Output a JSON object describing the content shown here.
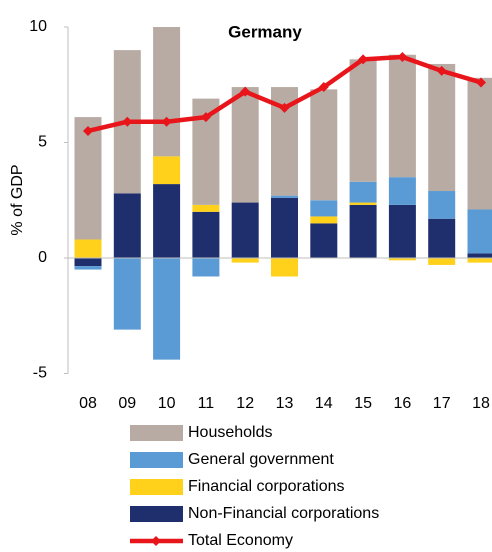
{
  "chart_data": {
    "type": "bar",
    "stacked": true,
    "title": "Germany",
    "y_label": "% of GDP",
    "categories": [
      "08",
      "09",
      "10",
      "11",
      "12",
      "13",
      "14",
      "15",
      "16",
      "17",
      "18"
    ],
    "ylim": [
      -5,
      10
    ],
    "yticks": [
      -5,
      0,
      5,
      10
    ],
    "series": [
      {
        "name": "Households",
        "color": "#b8aba4",
        "values": [
          5.3,
          6.2,
          5.6,
          4.6,
          5.0,
          4.7,
          4.8,
          5.3,
          5.3,
          5.5,
          5.7
        ]
      },
      {
        "name": "General government",
        "color": "#5b9bd5",
        "values": [
          -0.15,
          -3.1,
          -4.4,
          -0.8,
          0,
          0.1,
          0.7,
          0.9,
          1.2,
          1.2,
          1.9
        ]
      },
      {
        "name": "Financial corporations",
        "color": "#ffd11a",
        "values": [
          0.8,
          0,
          1.2,
          0.3,
          -0.2,
          -0.8,
          0.3,
          0.1,
          -0.1,
          -0.3,
          -0.2
        ]
      },
      {
        "name": "Non-Financial corporations",
        "color": "#1f2f6e",
        "values": [
          -0.35,
          2.8,
          3.2,
          2.0,
          2.4,
          2.6,
          1.5,
          2.3,
          2.3,
          1.7,
          0.2
        ]
      },
      {
        "name": "Total Economy",
        "color": "#e8151b",
        "type": "line",
        "values": [
          5.5,
          5.9,
          5.9,
          6.1,
          7.2,
          6.5,
          7.4,
          8.6,
          8.7,
          8.1,
          7.6
        ]
      }
    ]
  }
}
